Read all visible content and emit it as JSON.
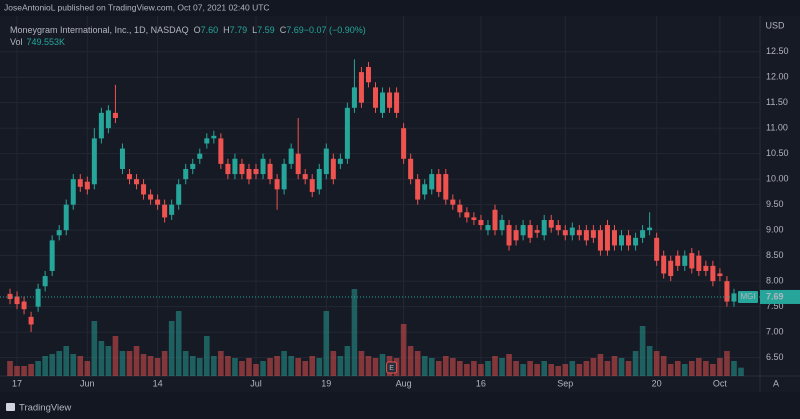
{
  "publisher": "JoseAntonioL published on TradingView.com, Oct 07, 2021 02:40 UTC",
  "brand": "TradingView",
  "chart_data": {
    "type": "candlestick",
    "title": "Moneygram International, Inc., 1D, NASDAQ",
    "legend": [
      {
        "label": "O",
        "value": "7.60"
      },
      {
        "label": "H",
        "value": "7.79"
      },
      {
        "label": "L",
        "value": "7.59"
      },
      {
        "label": "C",
        "value": "7.69"
      },
      {
        "label": "",
        "value": "−0.07 (−0.90%)"
      }
    ],
    "volume_title": "Vol",
    "volume_label": "749.553K",
    "currency": "USD",
    "symbol": "MGI",
    "earnings_marker": "E",
    "scale_mode": "A",
    "up_color": "#26a69a",
    "down_color": "#ef5350",
    "grid": true,
    "categories": [
      null,
      "17",
      null,
      null,
      null,
      null,
      null,
      null,
      null,
      null,
      null,
      "Jun",
      null,
      null,
      null,
      null,
      null,
      null,
      null,
      null,
      null,
      "14",
      null,
      null,
      null,
      null,
      null,
      null,
      null,
      null,
      null,
      null,
      null,
      null,
      null,
      "Jul",
      null,
      null,
      null,
      null,
      null,
      null,
      null,
      null,
      null,
      "19",
      null,
      null,
      null,
      null,
      null,
      null,
      null,
      null,
      null,
      null,
      "Aug",
      null,
      null,
      null,
      null,
      null,
      null,
      null,
      null,
      null,
      null,
      "16",
      null,
      null,
      null,
      null,
      null,
      null,
      null,
      null,
      null,
      null,
      null,
      "Sep",
      null,
      null,
      null,
      null,
      null,
      null,
      null,
      null,
      null,
      null,
      null,
      null,
      "20",
      null,
      null,
      null,
      null,
      null,
      null,
      null,
      null,
      "Oct",
      null,
      null,
      null
    ],
    "open": [
      7.75,
      7.7,
      7.6,
      7.3,
      7.5,
      7.9,
      8.2,
      8.9,
      9.0,
      9.5,
      10.0,
      9.95,
      9.9,
      10.8,
      11.0,
      11.3,
      10.2,
      10.1,
      10.0,
      9.9,
      9.7,
      9.6,
      9.5,
      9.3,
      9.5,
      10.0,
      10.2,
      10.4,
      10.7,
      10.8,
      10.8,
      10.3,
      10.1,
      10.3,
      10.2,
      10.2,
      10.1,
      10.3,
      10.0,
      9.8,
      10.3,
      10.5,
      10.1,
      10.0,
      9.8,
      10.1,
      10.4,
      10.3,
      10.4,
      11.4,
      12.1,
      12.2,
      11.8,
      11.3,
      11.7,
      11.7,
      11.0,
      10.4,
      10.0,
      9.7,
      9.8,
      10.1,
      10.1,
      9.6,
      9.5,
      9.35,
      9.25,
      9.2,
      9.0,
      9.4,
      9.0,
      9.1,
      9.0,
      8.9,
      9.1,
      9.0,
      8.9,
      9.2,
      9.1,
      9.0,
      8.9,
      9.0,
      9.0,
      9.0,
      9.0,
      9.1,
      9.0,
      8.7,
      8.9,
      8.7,
      8.85,
      9.0,
      8.85,
      8.5,
      8.4,
      8.5,
      8.3,
      8.55,
      8.5,
      8.3,
      8.3,
      8.15,
      8.0,
      7.6,
      7.6
    ],
    "high": [
      7.85,
      7.8,
      7.7,
      7.4,
      7.95,
      8.2,
      8.9,
      9.1,
      9.6,
      10.1,
      10.1,
      10.05,
      11.0,
      11.4,
      11.45,
      11.85,
      10.7,
      10.2,
      10.1,
      10.0,
      9.8,
      9.7,
      9.6,
      9.6,
      10.0,
      10.3,
      10.4,
      10.6,
      10.9,
      10.95,
      10.9,
      10.4,
      10.5,
      10.4,
      10.3,
      10.3,
      10.5,
      10.4,
      10.1,
      10.4,
      10.7,
      11.2,
      10.2,
      10.1,
      10.3,
      10.7,
      10.5,
      10.5,
      11.5,
      12.35,
      12.2,
      12.3,
      11.9,
      11.8,
      11.8,
      11.8,
      11.1,
      10.5,
      10.1,
      10.0,
      10.2,
      10.2,
      10.2,
      9.7,
      9.6,
      9.45,
      9.35,
      9.3,
      9.2,
      9.5,
      9.3,
      9.2,
      9.1,
      9.2,
      9.2,
      9.1,
      9.3,
      9.3,
      9.2,
      9.1,
      9.15,
      9.1,
      9.1,
      9.1,
      9.1,
      9.2,
      9.1,
      9.0,
      9.0,
      8.95,
      9.1,
      9.35,
      8.95,
      8.6,
      8.5,
      8.6,
      8.6,
      8.65,
      8.6,
      8.4,
      8.4,
      8.25,
      8.1,
      7.85,
      7.79
    ],
    "low": [
      7.55,
      7.45,
      7.35,
      7.0,
      7.4,
      7.8,
      8.1,
      8.8,
      8.9,
      9.4,
      9.75,
      9.7,
      9.8,
      10.7,
      10.9,
      11.1,
      10.1,
      9.9,
      9.8,
      9.6,
      9.5,
      9.4,
      9.15,
      9.2,
      9.4,
      9.9,
      10.1,
      10.3,
      10.6,
      10.7,
      10.2,
      10.0,
      10.0,
      10.0,
      9.9,
      10.0,
      10.0,
      9.9,
      9.4,
      9.7,
      10.2,
      10.0,
      9.9,
      9.65,
      9.7,
      10.0,
      9.9,
      10.2,
      10.3,
      11.3,
      11.4,
      11.8,
      11.3,
      11.2,
      11.3,
      11.2,
      10.3,
      9.9,
      9.5,
      9.6,
      9.7,
      9.65,
      9.5,
      9.4,
      9.25,
      9.15,
      9.1,
      9.0,
      8.9,
      8.9,
      8.9,
      8.6,
      8.7,
      8.8,
      8.75,
      8.85,
      8.8,
      8.95,
      8.9,
      8.8,
      8.8,
      8.8,
      8.7,
      8.75,
      8.5,
      8.5,
      8.6,
      8.6,
      8.6,
      8.6,
      8.75,
      8.9,
      8.3,
      8.05,
      8.0,
      8.2,
      8.2,
      8.15,
      8.1,
      8.1,
      7.9,
      8.0,
      7.5,
      7.5,
      7.59
    ],
    "close": [
      7.65,
      7.55,
      7.45,
      7.15,
      7.85,
      8.1,
      8.8,
      9.0,
      9.5,
      10.0,
      9.85,
      9.8,
      10.8,
      11.3,
      11.35,
      11.2,
      10.6,
      10.0,
      9.9,
      9.7,
      9.6,
      9.5,
      9.25,
      9.5,
      9.9,
      10.2,
      10.3,
      10.5,
      10.8,
      10.85,
      10.3,
      10.1,
      10.4,
      10.1,
      10.0,
      10.1,
      10.4,
      10.0,
      9.8,
      10.3,
      10.6,
      10.1,
      10.0,
      9.75,
      10.2,
      10.6,
      10.0,
      10.4,
      11.4,
      11.8,
      11.5,
      11.9,
      11.4,
      11.7,
      11.4,
      11.3,
      10.4,
      10.0,
      9.6,
      9.9,
      10.1,
      9.75,
      9.6,
      9.5,
      9.35,
      9.25,
      9.2,
      9.1,
      9.1,
      9.0,
      9.2,
      8.7,
      8.8,
      9.1,
      8.85,
      8.95,
      9.2,
      9.05,
      9.0,
      8.9,
      9.05,
      8.9,
      8.8,
      8.85,
      8.6,
      8.6,
      8.7,
      8.9,
      8.7,
      8.85,
      9.0,
      9.05,
      8.4,
      8.15,
      8.1,
      8.3,
      8.5,
      8.25,
      8.2,
      8.2,
      8.0,
      8.1,
      7.6,
      7.76,
      7.69
    ],
    "volume": [
      1350,
      900,
      900,
      1080,
      1350,
      1800,
      1980,
      2250,
      2700,
      1980,
      1800,
      1350,
      4950,
      3150,
      2700,
      3600,
      2250,
      2250,
      2700,
      1980,
      1800,
      1620,
      2250,
      4950,
      5850,
      2250,
      1800,
      1620,
      3600,
      1800,
      2250,
      1800,
      1620,
      1350,
      1620,
      1080,
      1350,
      1620,
      1800,
      2250,
      1800,
      1620,
      1350,
      1800,
      1620,
      5850,
      2250,
      1800,
      2700,
      7830,
      2250,
      1800,
      1620,
      1980,
      1800,
      1620,
      4680,
      2700,
      2250,
      1800,
      1620,
      1350,
      1800,
      1620,
      1350,
      1080,
      1350,
      1080,
      1350,
      1800,
      1620,
      1980,
      1350,
      1080,
      1350,
      1080,
      1350,
      1080,
      900,
      1080,
      1350,
      1080,
      1350,
      1620,
      1980,
      1350,
      1800,
      1620,
      1350,
      2250,
      4500,
      2700,
      2250,
      1800,
      1080,
      1350,
      1080,
      1350,
      1620,
      1350,
      1080,
      1620,
      2250,
      1350,
      749.553
    ],
    "volume_ylim": [
      0,
      32400
    ],
    "ylim": [
      6.14,
      13.2
    ],
    "yticks": [
      {
        "value": 6.5,
        "label": "6.50"
      },
      {
        "value": 7,
        "label": "7.00"
      },
      {
        "value": 7.5,
        "label": "7.50"
      },
      {
        "value": 8,
        "label": "8.00"
      },
      {
        "value": 8.5,
        "label": "8.50"
      },
      {
        "value": 9,
        "label": "9.00"
      },
      {
        "value": 9.5,
        "label": "9.50"
      },
      {
        "value": 10,
        "label": "10.00"
      },
      {
        "value": 10.5,
        "label": "10.50"
      },
      {
        "value": 11,
        "label": "11.00"
      },
      {
        "value": 11.5,
        "label": "11.50"
      },
      {
        "value": 12,
        "label": "12.00"
      },
      {
        "value": 12.5,
        "label": "12.50"
      }
    ]
  }
}
